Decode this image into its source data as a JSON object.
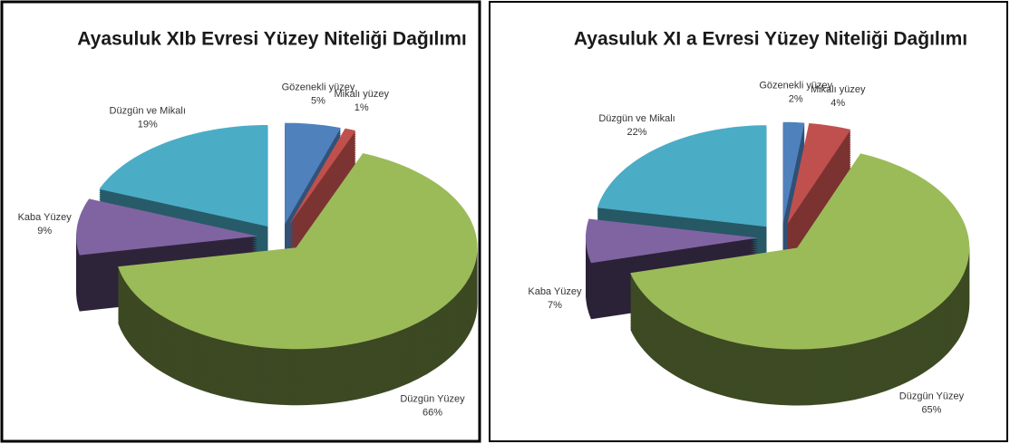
{
  "chart_data": [
    {
      "type": "pie",
      "title": "Ayasuluk  XIb Evresi Yüzey Niteliği Dağılımı",
      "categories": [
        "Gözenekli yüzey",
        "Mikalı yüzey",
        "Düzgün Yüzey",
        "Kaba Yüzey",
        "Düzgün ve Mikalı"
      ],
      "values": [
        5,
        1,
        66,
        9,
        19
      ],
      "value_labels": [
        "5%",
        "1%",
        "66%",
        "9%",
        "19%"
      ],
      "colors": [
        "#4f81bd",
        "#c0504d",
        "#9bbb59",
        "#8064a2",
        "#4bacc6"
      ]
    },
    {
      "type": "pie",
      "title": "Ayasuluk  XI a Evresi Yüzey Niteliği Dağılımı",
      "categories": [
        "Gözenekli yüzey",
        "Mikalı yüzey",
        "Düzgün Yüzey",
        "Kaba Yüzey",
        "Düzgün ve Mikalı"
      ],
      "values": [
        2,
        4,
        65,
        7,
        22
      ],
      "value_labels": [
        "2%",
        "4%",
        "65%",
        "7%",
        "22%"
      ],
      "colors": [
        "#4f81bd",
        "#c0504d",
        "#9bbb59",
        "#8064a2",
        "#4bacc6"
      ]
    }
  ]
}
